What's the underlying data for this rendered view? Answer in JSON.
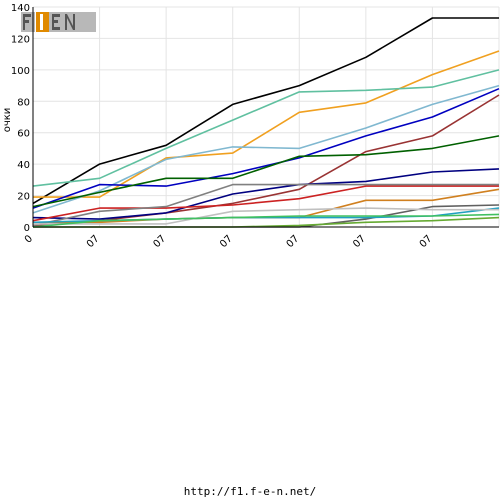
{
  "chart_data": {
    "type": "line",
    "ylabel": "очки",
    "ylim": [
      0,
      140
    ],
    "yticks": [
      0,
      20,
      40,
      60,
      80,
      100,
      120,
      140
    ],
    "x_tick_labels": [
      "0",
      "07",
      "07",
      "07",
      "07",
      "07",
      "07"
    ],
    "grid": true,
    "logo": "F1FEN",
    "x": [
      1,
      2,
      3,
      4,
      5,
      6,
      7,
      8
    ],
    "series": [
      {
        "color": "#000000",
        "values": [
          15,
          40,
          52,
          78,
          90,
          108,
          133,
          133
        ]
      },
      {
        "color": "#f0a020",
        "values": [
          19,
          19,
          44,
          47,
          73,
          79,
          97,
          112
        ]
      },
      {
        "color": "#60c0a0",
        "values": [
          26,
          31,
          50,
          68,
          86,
          87,
          89,
          100
        ]
      },
      {
        "color": "#80b8d0",
        "values": [
          9,
          23,
          43,
          51,
          50,
          63,
          78,
          90
        ]
      },
      {
        "color": "#0000c0",
        "values": [
          12,
          27,
          26,
          34,
          44,
          58,
          70,
          88
        ]
      },
      {
        "color": "#993333",
        "values": [
          1,
          4,
          9,
          15,
          24,
          48,
          58,
          84
        ]
      },
      {
        "color": "#006000",
        "values": [
          13,
          22,
          31,
          31,
          45,
          46,
          50,
          58
        ]
      },
      {
        "color": "#000080",
        "values": [
          6,
          5,
          9,
          21,
          27,
          29,
          35,
          37
        ]
      },
      {
        "color": "#cc2222",
        "values": [
          4,
          12,
          12,
          14,
          18,
          26,
          26,
          26
        ]
      },
      {
        "color": "#808080",
        "values": [
          1,
          10,
          13,
          27,
          27,
          27,
          27,
          27
        ]
      },
      {
        "color": "#d08020",
        "values": [
          3,
          3,
          5,
          6,
          6,
          17,
          17,
          24
        ]
      },
      {
        "color": "#606060",
        "values": [
          0,
          0,
          0,
          0,
          0,
          5,
          13,
          14
        ]
      },
      {
        "color": "#20a0c0",
        "values": [
          3,
          4,
          5,
          6,
          6,
          6,
          7,
          12
        ]
      },
      {
        "color": "#c0c0c0",
        "values": [
          2,
          2,
          2,
          10,
          11,
          12,
          11,
          11
        ]
      },
      {
        "color": "#66aa33",
        "values": [
          0,
          0,
          0,
          0,
          1,
          3,
          4,
          6
        ]
      },
      {
        "color": "#40c060",
        "values": [
          0,
          4,
          5,
          6,
          7,
          7,
          7,
          8
        ]
      }
    ]
  },
  "footer": {
    "url": "http://f1.f-e-n.net/"
  }
}
